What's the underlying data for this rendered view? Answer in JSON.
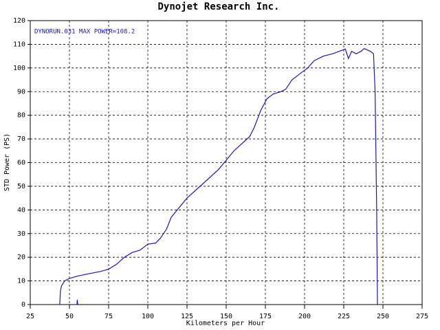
{
  "chart_data": {
    "type": "line",
    "title": "Dynojet  Research  Inc.",
    "annotation": "DYNORUN.031  MAX POWER=108.2",
    "x_label": "Kilometers per Hour",
    "y_label": "STD Power (PS)",
    "xlim": [
      25,
      275
    ],
    "xticks": [
      25,
      50,
      75,
      100,
      125,
      150,
      175,
      200,
      225,
      250,
      275
    ],
    "ylim": [
      0,
      120
    ],
    "yticks": [
      0,
      10,
      20,
      30,
      40,
      50,
      60,
      70,
      80,
      90,
      100,
      110,
      120
    ],
    "grid": true,
    "series": [
      {
        "name": "DYNORUN.031",
        "color": "#1a1aa8",
        "x": [
          43.8,
          44.3,
          45,
          47,
          50,
          55,
          62,
          70,
          75,
          80,
          85,
          90,
          95,
          100,
          105,
          108,
          112,
          115,
          125,
          135,
          145,
          155,
          165,
          168,
          172,
          176,
          180,
          185,
          188,
          192,
          198,
          202,
          206,
          212,
          218,
          222,
          226,
          228,
          230,
          233,
          236,
          238,
          242,
          244,
          245,
          246,
          246.5,
          null,
          54.8,
          55,
          55.3
        ],
        "values": [
          0,
          6,
          8,
          10,
          11,
          12,
          13,
          14,
          15,
          17,
          20,
          22,
          23,
          25.5,
          26,
          28,
          32,
          37,
          45,
          51,
          57,
          65,
          71,
          75,
          82,
          87,
          89,
          90,
          91,
          95,
          98,
          100,
          103,
          105,
          106,
          107,
          108,
          104,
          107,
          106,
          107,
          108.2,
          107,
          106,
          90,
          40,
          0,
          null,
          0,
          2,
          0
        ]
      }
    ]
  }
}
